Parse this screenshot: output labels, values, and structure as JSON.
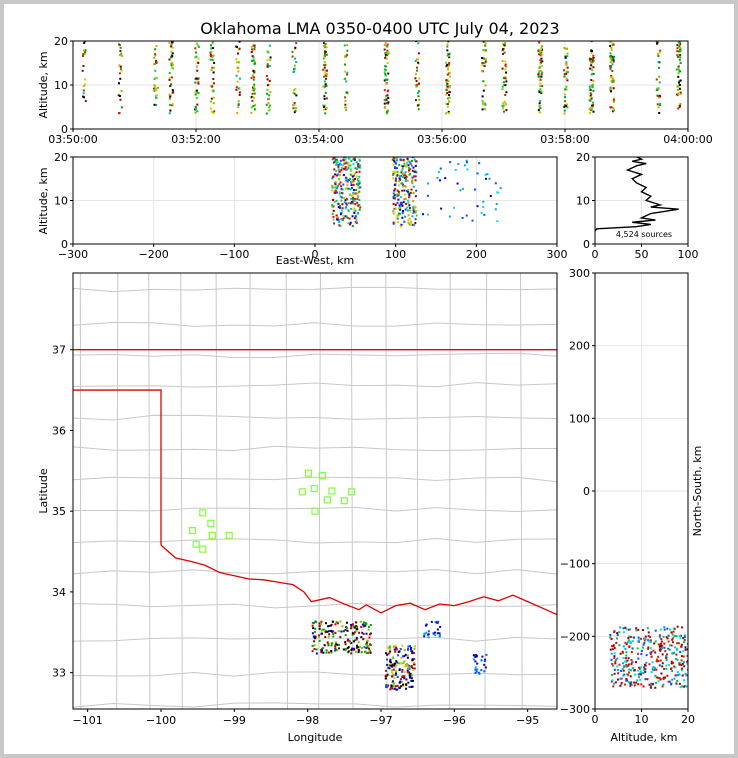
{
  "chart_data": [
    {
      "type": "scatter",
      "panel": "altitude-time",
      "title": "Oklahoma LMA 0350-0400 UTC July 04, 2023",
      "ylabel": "Altitude, km",
      "xlim": [
        "03:50:00",
        "04:00:00"
      ],
      "ylim": [
        0,
        20
      ],
      "xticks": [
        "03:50:00",
        "03:52:00",
        "03:54:00",
        "03:56:00",
        "03:58:00",
        "04:00:00"
      ],
      "yticks": [
        "0",
        "10",
        "20"
      ],
      "source_columns": [
        {
          "time": "03:50:10",
          "density": 0.2
        },
        {
          "time": "03:50:45",
          "density": 0.3
        },
        {
          "time": "03:51:20",
          "density": 0.4
        },
        {
          "time": "03:51:35",
          "density": 0.8
        },
        {
          "time": "03:52:00",
          "density": 0.5
        },
        {
          "time": "03:52:15",
          "density": 0.6
        },
        {
          "time": "03:52:40",
          "density": 0.4
        },
        {
          "time": "03:52:55",
          "density": 0.7
        },
        {
          "time": "03:53:10",
          "density": 0.4
        },
        {
          "time": "03:53:35",
          "density": 0.3
        },
        {
          "time": "03:54:05",
          "density": 0.8
        },
        {
          "time": "03:54:25",
          "density": 0.3
        },
        {
          "time": "03:55:05",
          "density": 1.0
        },
        {
          "time": "03:55:35",
          "density": 0.4
        },
        {
          "time": "03:56:05",
          "density": 0.9
        },
        {
          "time": "03:56:40",
          "density": 0.5
        },
        {
          "time": "03:57:00",
          "density": 0.7
        },
        {
          "time": "03:57:35",
          "density": 0.9
        },
        {
          "time": "03:58:00",
          "density": 0.5
        },
        {
          "time": "03:58:25",
          "density": 1.0
        },
        {
          "time": "03:58:45",
          "density": 0.9
        },
        {
          "time": "03:59:30",
          "density": 0.4
        },
        {
          "time": "03:59:50",
          "density": 1.0
        }
      ]
    },
    {
      "type": "scatter",
      "panel": "altitude-eastwest",
      "xlabel": "East-West, km",
      "ylabel": "Altitude, km",
      "xlim": [
        -300,
        300
      ],
      "ylim": [
        0,
        20
      ],
      "xticks": [
        "−300",
        "−200",
        "−100",
        "0",
        "100",
        "200",
        "300"
      ],
      "yticks": [
        "0",
        "10",
        "20"
      ],
      "clusters": [
        {
          "x": [
            20,
            55
          ],
          "alt": [
            4,
            20
          ]
        },
        {
          "x": [
            95,
            125
          ],
          "alt": [
            4,
            20
          ]
        },
        {
          "x": [
            130,
            230
          ],
          "alt": [
            5,
            20
          ]
        }
      ]
    },
    {
      "type": "line",
      "panel": "altitude-histogram",
      "xlim": [
        0,
        100
      ],
      "ylim": [
        0,
        20
      ],
      "xticks": [
        "0",
        "50",
        "100"
      ],
      "yticks": [
        "0",
        "10",
        "20"
      ],
      "annotation": "4,524 sources",
      "profile": [
        {
          "alt": 3.5,
          "count": 2
        },
        {
          "alt": 4.0,
          "count": 45
        },
        {
          "alt": 4.5,
          "count": 60
        },
        {
          "alt": 5.0,
          "count": 40
        },
        {
          "alt": 5.5,
          "count": 65
        },
        {
          "alt": 6.0,
          "count": 50
        },
        {
          "alt": 7.0,
          "count": 60
        },
        {
          "alt": 8.0,
          "count": 90
        },
        {
          "alt": 8.5,
          "count": 60
        },
        {
          "alt": 9.0,
          "count": 70
        },
        {
          "alt": 10.0,
          "count": 55
        },
        {
          "alt": 11.0,
          "count": 60
        },
        {
          "alt": 12.0,
          "count": 50
        },
        {
          "alt": 13.0,
          "count": 55
        },
        {
          "alt": 14.0,
          "count": 45
        },
        {
          "alt": 15.0,
          "count": 40
        },
        {
          "alt": 16.0,
          "count": 50
        },
        {
          "alt": 17.0,
          "count": 35
        },
        {
          "alt": 18.0,
          "count": 45
        },
        {
          "alt": 18.5,
          "count": 55
        },
        {
          "alt": 19.0,
          "count": 40
        },
        {
          "alt": 19.5,
          "count": 50
        },
        {
          "alt": 20.0,
          "count": 45
        }
      ]
    },
    {
      "type": "scatter",
      "panel": "plan-view-map",
      "xlabel": "Longitude",
      "ylabel": "Latitude",
      "xlim": [
        -101.2,
        -94.6
      ],
      "ylim": [
        32.55,
        37.95
      ],
      "xticks": [
        "−101",
        "−100",
        "−99",
        "−98",
        "−97",
        "−96",
        "−95"
      ],
      "yticks": [
        "33",
        "34",
        "35",
        "36",
        "37"
      ],
      "stations": [
        {
          "lon": -99.43,
          "lat": 34.98
        },
        {
          "lon": -99.32,
          "lat": 34.85
        },
        {
          "lon": -99.57,
          "lat": 34.76
        },
        {
          "lon": -99.3,
          "lat": 34.7
        },
        {
          "lon": -99.07,
          "lat": 34.7
        },
        {
          "lon": -99.52,
          "lat": 34.59
        },
        {
          "lon": -99.43,
          "lat": 34.53
        },
        {
          "lon": -97.99,
          "lat": 35.47
        },
        {
          "lon": -97.8,
          "lat": 35.44
        },
        {
          "lon": -98.07,
          "lat": 35.24
        },
        {
          "lon": -97.91,
          "lat": 35.28
        },
        {
          "lon": -97.67,
          "lat": 35.25
        },
        {
          "lon": -97.4,
          "lat": 35.24
        },
        {
          "lon": -97.73,
          "lat": 35.14
        },
        {
          "lon": -97.5,
          "lat": 35.13
        },
        {
          "lon": -97.9,
          "lat": 35.0
        }
      ],
      "source_clusters": [
        {
          "lon": [
            -97.95,
            -97.15
          ],
          "lat": [
            33.25,
            33.65
          ]
        },
        {
          "lon": [
            -96.95,
            -96.55
          ],
          "lat": [
            32.8,
            33.35
          ]
        },
        {
          "lon": [
            -96.45,
            -96.2
          ],
          "lat": [
            33.45,
            33.65
          ]
        },
        {
          "lon": [
            -95.75,
            -95.55
          ],
          "lat": [
            32.95,
            33.25
          ]
        }
      ]
    },
    {
      "type": "scatter",
      "panel": "northsouth-altitude",
      "xlabel": "Altitude, km",
      "ylabel": "North-South, km",
      "xlim": [
        0,
        20
      ],
      "ylim": [
        -300,
        300
      ],
      "xticks": [
        "0",
        "10",
        "20"
      ],
      "yticks": [
        "−300",
        "−200",
        "−100",
        "0",
        "100",
        "200",
        "300"
      ],
      "clusters": [
        {
          "alt": [
            3,
            20
          ],
          "ns": [
            -270,
            -185
          ]
        }
      ]
    }
  ]
}
